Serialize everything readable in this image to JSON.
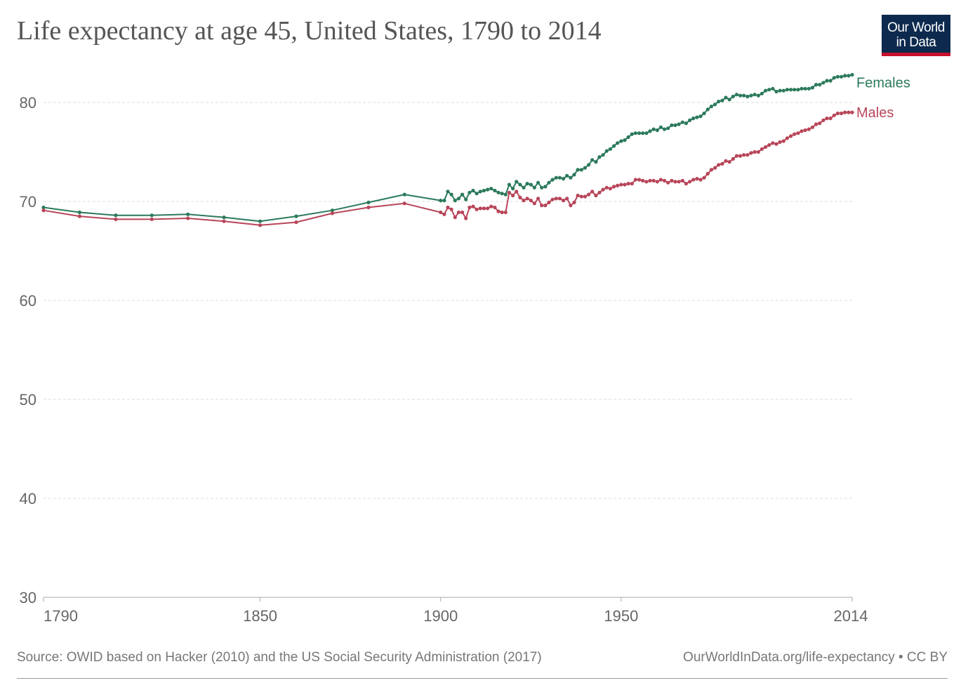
{
  "header": {
    "title": "Life expectancy at age 45, United States, 1790 to 2014",
    "logo_line1": "Our World",
    "logo_line2": "in Data"
  },
  "footer": {
    "source": "Source: OWID based on Hacker (2010) and the US Social Security Administration (2017)",
    "link": "OurWorldInData.org/life-expectancy • CC BY"
  },
  "colors": {
    "females": "#2b7a5b",
    "males": "#b84559",
    "grid": "#dddddd",
    "axis_text": "#666666"
  },
  "chart_data": {
    "type": "line",
    "title": "Life expectancy at age 45, United States, 1790 to 2014",
    "xlabel": "",
    "ylabel": "",
    "xlim": [
      1790,
      2014
    ],
    "ylim": [
      30,
      84
    ],
    "x_ticks": [
      "1790",
      "1850",
      "1900",
      "1950",
      "2014"
    ],
    "y_ticks": [
      "30",
      "40",
      "50",
      "60",
      "70",
      "80"
    ],
    "grid": true,
    "legend": "inline-right",
    "series": [
      {
        "name": "Females",
        "color": "#2b7a5b",
        "points": [
          [
            1790,
            69.4
          ],
          [
            1800,
            68.9
          ],
          [
            1810,
            68.6
          ],
          [
            1820,
            68.6
          ],
          [
            1830,
            68.7
          ],
          [
            1840,
            68.4
          ],
          [
            1850,
            68.0
          ],
          [
            1860,
            68.5
          ],
          [
            1870,
            69.1
          ],
          [
            1880,
            69.9
          ],
          [
            1890,
            70.7
          ],
          [
            1900,
            70.1
          ],
          [
            1901,
            70.1
          ],
          [
            1902,
            71.0
          ],
          [
            1903,
            70.7
          ],
          [
            1904,
            70.1
          ],
          [
            1905,
            70.3
          ],
          [
            1906,
            70.7
          ],
          [
            1907,
            70.2
          ],
          [
            1908,
            70.9
          ],
          [
            1909,
            71.1
          ],
          [
            1910,
            70.8
          ],
          [
            1911,
            71.0
          ],
          [
            1912,
            71.1
          ],
          [
            1913,
            71.2
          ],
          [
            1914,
            71.3
          ],
          [
            1915,
            71.1
          ],
          [
            1916,
            70.9
          ],
          [
            1917,
            70.8
          ],
          [
            1918,
            70.7
          ],
          [
            1919,
            71.7
          ],
          [
            1920,
            71.3
          ],
          [
            1921,
            72.0
          ],
          [
            1922,
            71.7
          ],
          [
            1923,
            71.4
          ],
          [
            1924,
            71.8
          ],
          [
            1925,
            71.7
          ],
          [
            1926,
            71.4
          ],
          [
            1927,
            71.9
          ],
          [
            1928,
            71.4
          ],
          [
            1929,
            71.5
          ],
          [
            1930,
            71.9
          ],
          [
            1931,
            72.2
          ],
          [
            1932,
            72.4
          ],
          [
            1933,
            72.4
          ],
          [
            1934,
            72.3
          ],
          [
            1935,
            72.6
          ],
          [
            1936,
            72.4
          ],
          [
            1937,
            72.7
          ],
          [
            1938,
            73.2
          ],
          [
            1939,
            73.2
          ],
          [
            1940,
            73.4
          ],
          [
            1941,
            73.7
          ],
          [
            1942,
            74.2
          ],
          [
            1943,
            74.0
          ],
          [
            1944,
            74.5
          ],
          [
            1945,
            74.7
          ],
          [
            1946,
            75.1
          ],
          [
            1947,
            75.3
          ],
          [
            1948,
            75.6
          ],
          [
            1949,
            75.9
          ],
          [
            1950,
            76.1
          ],
          [
            1951,
            76.2
          ],
          [
            1952,
            76.5
          ],
          [
            1953,
            76.8
          ],
          [
            1954,
            76.9
          ],
          [
            1955,
            76.9
          ],
          [
            1956,
            76.9
          ],
          [
            1957,
            76.9
          ],
          [
            1958,
            77.1
          ],
          [
            1959,
            77.3
          ],
          [
            1960,
            77.2
          ],
          [
            1961,
            77.5
          ],
          [
            1962,
            77.3
          ],
          [
            1963,
            77.4
          ],
          [
            1964,
            77.7
          ],
          [
            1965,
            77.7
          ],
          [
            1966,
            77.8
          ],
          [
            1967,
            78.0
          ],
          [
            1968,
            77.9
          ],
          [
            1969,
            78.2
          ],
          [
            1970,
            78.4
          ],
          [
            1971,
            78.5
          ],
          [
            1972,
            78.6
          ],
          [
            1973,
            78.9
          ],
          [
            1974,
            79.3
          ],
          [
            1975,
            79.6
          ],
          [
            1976,
            79.8
          ],
          [
            1977,
            80.1
          ],
          [
            1978,
            80.2
          ],
          [
            1979,
            80.5
          ],
          [
            1980,
            80.3
          ],
          [
            1981,
            80.6
          ],
          [
            1982,
            80.8
          ],
          [
            1983,
            80.7
          ],
          [
            1984,
            80.7
          ],
          [
            1985,
            80.6
          ],
          [
            1986,
            80.7
          ],
          [
            1987,
            80.8
          ],
          [
            1988,
            80.7
          ],
          [
            1989,
            80.9
          ],
          [
            1990,
            81.2
          ],
          [
            1991,
            81.3
          ],
          [
            1992,
            81.4
          ],
          [
            1993,
            81.1
          ],
          [
            1994,
            81.2
          ],
          [
            1995,
            81.2
          ],
          [
            1996,
            81.3
          ],
          [
            1997,
            81.3
          ],
          [
            1998,
            81.3
          ],
          [
            1999,
            81.3
          ],
          [
            2000,
            81.4
          ],
          [
            2001,
            81.4
          ],
          [
            2002,
            81.4
          ],
          [
            2003,
            81.5
          ],
          [
            2004,
            81.8
          ],
          [
            2005,
            81.8
          ],
          [
            2006,
            82.0
          ],
          [
            2007,
            82.2
          ],
          [
            2008,
            82.2
          ],
          [
            2009,
            82.5
          ],
          [
            2010,
            82.6
          ],
          [
            2011,
            82.6
          ],
          [
            2012,
            82.7
          ],
          [
            2013,
            82.7
          ],
          [
            2014,
            82.8
          ]
        ]
      },
      {
        "name": "Males",
        "color": "#b84559",
        "points": [
          [
            1790,
            69.1
          ],
          [
            1800,
            68.5
          ],
          [
            1810,
            68.2
          ],
          [
            1820,
            68.2
          ],
          [
            1830,
            68.3
          ],
          [
            1840,
            68.0
          ],
          [
            1850,
            67.6
          ],
          [
            1860,
            67.9
          ],
          [
            1870,
            68.8
          ],
          [
            1880,
            69.4
          ],
          [
            1890,
            69.8
          ],
          [
            1900,
            68.9
          ],
          [
            1901,
            68.7
          ],
          [
            1902,
            69.4
          ],
          [
            1903,
            69.2
          ],
          [
            1904,
            68.4
          ],
          [
            1905,
            68.9
          ],
          [
            1906,
            68.9
          ],
          [
            1907,
            68.3
          ],
          [
            1908,
            69.4
          ],
          [
            1909,
            69.5
          ],
          [
            1910,
            69.2
          ],
          [
            1911,
            69.3
          ],
          [
            1912,
            69.3
          ],
          [
            1913,
            69.3
          ],
          [
            1914,
            69.5
          ],
          [
            1915,
            69.4
          ],
          [
            1916,
            69.0
          ],
          [
            1917,
            68.9
          ],
          [
            1918,
            68.9
          ],
          [
            1919,
            70.9
          ],
          [
            1920,
            70.6
          ],
          [
            1921,
            71.0
          ],
          [
            1922,
            70.4
          ],
          [
            1923,
            70.1
          ],
          [
            1924,
            70.3
          ],
          [
            1925,
            70.1
          ],
          [
            1926,
            69.8
          ],
          [
            1927,
            70.3
          ],
          [
            1928,
            69.6
          ],
          [
            1929,
            69.6
          ],
          [
            1930,
            69.9
          ],
          [
            1931,
            70.2
          ],
          [
            1932,
            70.3
          ],
          [
            1933,
            70.3
          ],
          [
            1934,
            70.1
          ],
          [
            1935,
            70.3
          ],
          [
            1936,
            69.6
          ],
          [
            1937,
            69.9
          ],
          [
            1938,
            70.6
          ],
          [
            1939,
            70.5
          ],
          [
            1940,
            70.5
          ],
          [
            1941,
            70.7
          ],
          [
            1942,
            71.0
          ],
          [
            1943,
            70.6
          ],
          [
            1944,
            70.9
          ],
          [
            1945,
            71.2
          ],
          [
            1946,
            71.4
          ],
          [
            1947,
            71.3
          ],
          [
            1948,
            71.5
          ],
          [
            1949,
            71.6
          ],
          [
            1950,
            71.7
          ],
          [
            1951,
            71.7
          ],
          [
            1952,
            71.8
          ],
          [
            1953,
            71.8
          ],
          [
            1954,
            72.2
          ],
          [
            1955,
            72.2
          ],
          [
            1956,
            72.1
          ],
          [
            1957,
            72.0
          ],
          [
            1958,
            72.1
          ],
          [
            1959,
            72.1
          ],
          [
            1960,
            72.0
          ],
          [
            1961,
            72.2
          ],
          [
            1962,
            72.1
          ],
          [
            1963,
            71.9
          ],
          [
            1964,
            72.1
          ],
          [
            1965,
            72.0
          ],
          [
            1966,
            72.0
          ],
          [
            1967,
            72.1
          ],
          [
            1968,
            71.8
          ],
          [
            1969,
            72.0
          ],
          [
            1970,
            72.2
          ],
          [
            1971,
            72.3
          ],
          [
            1972,
            72.2
          ],
          [
            1973,
            72.4
          ],
          [
            1974,
            72.8
          ],
          [
            1975,
            73.2
          ],
          [
            1976,
            73.4
          ],
          [
            1977,
            73.7
          ],
          [
            1978,
            73.8
          ],
          [
            1979,
            74.1
          ],
          [
            1980,
            74.0
          ],
          [
            1981,
            74.3
          ],
          [
            1982,
            74.6
          ],
          [
            1983,
            74.6
          ],
          [
            1984,
            74.7
          ],
          [
            1985,
            74.7
          ],
          [
            1986,
            74.9
          ],
          [
            1987,
            75.0
          ],
          [
            1988,
            75.0
          ],
          [
            1989,
            75.3
          ],
          [
            1990,
            75.5
          ],
          [
            1991,
            75.7
          ],
          [
            1992,
            75.9
          ],
          [
            1993,
            75.8
          ],
          [
            1994,
            76.0
          ],
          [
            1995,
            76.1
          ],
          [
            1996,
            76.4
          ],
          [
            1997,
            76.6
          ],
          [
            1998,
            76.8
          ],
          [
            1999,
            76.9
          ],
          [
            2000,
            77.1
          ],
          [
            2001,
            77.2
          ],
          [
            2002,
            77.3
          ],
          [
            2003,
            77.5
          ],
          [
            2004,
            77.8
          ],
          [
            2005,
            77.9
          ],
          [
            2006,
            78.2
          ],
          [
            2007,
            78.4
          ],
          [
            2008,
            78.4
          ],
          [
            2009,
            78.7
          ],
          [
            2010,
            78.9
          ],
          [
            2011,
            78.9
          ],
          [
            2012,
            79.0
          ],
          [
            2013,
            79.0
          ],
          [
            2014,
            79.0
          ]
        ]
      }
    ]
  }
}
